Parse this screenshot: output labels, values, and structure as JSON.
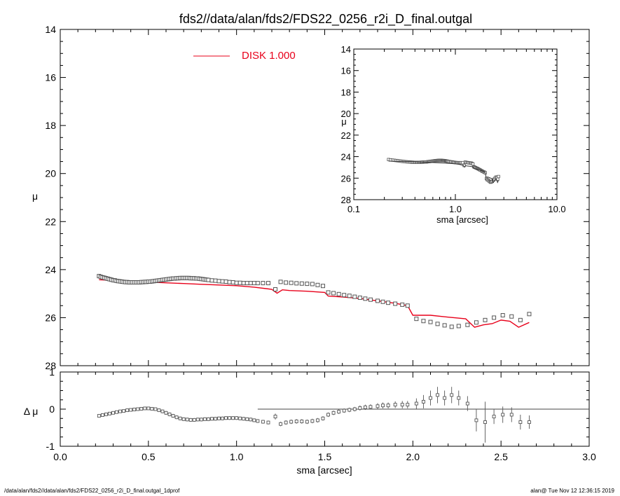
{
  "page": {
    "title": "fds2//data/alan/fds2/FDS22_0256_r2i_D_final.outgal",
    "footer_left": "/data/alan/fds2//data/alan/fds2/FDS22_0256_r2i_D_final.outgal_1dprof",
    "footer_right": "alan@  Tue Nov 12 12:36:15 2019"
  },
  "colors": {
    "model": "#e8001a",
    "data": "#555555",
    "axes": "#000000"
  },
  "chart_data": [
    {
      "id": "main",
      "type": "scatter",
      "ylabel": "μ",
      "xlabel": "",
      "xlim": [
        0,
        3
      ],
      "ylim": [
        28,
        14
      ],
      "y_inverted": true,
      "xticks": [],
      "yticks": [
        "14",
        "16",
        "18",
        "20",
        "22",
        "24",
        "26",
        "28"
      ],
      "legend": {
        "label": "DISK  1.000",
        "color": "#e8001a",
        "placement": "top-center"
      },
      "series": [
        {
          "name": "data",
          "marker": "square",
          "x": [
            0.22,
            0.23,
            0.24,
            0.25,
            0.26,
            0.27,
            0.28,
            0.29,
            0.3,
            0.31,
            0.32,
            0.33,
            0.34,
            0.35,
            0.36,
            0.37,
            0.38,
            0.39,
            0.4,
            0.41,
            0.42,
            0.43,
            0.44,
            0.45,
            0.46,
            0.47,
            0.48,
            0.49,
            0.5,
            0.51,
            0.52,
            0.53,
            0.54,
            0.55,
            0.56,
            0.57,
            0.58,
            0.59,
            0.6,
            0.61,
            0.62,
            0.63,
            0.64,
            0.65,
            0.66,
            0.67,
            0.68,
            0.69,
            0.7,
            0.71,
            0.72,
            0.73,
            0.74,
            0.75,
            0.76,
            0.77,
            0.78,
            0.79,
            0.8,
            0.81,
            0.82,
            0.83,
            0.84,
            0.86,
            0.88,
            0.9,
            0.92,
            0.94,
            0.96,
            0.98,
            1.0,
            1.02,
            1.04,
            1.06,
            1.08,
            1.1,
            1.12,
            1.15,
            1.18,
            1.22,
            1.25,
            1.28,
            1.31,
            1.34,
            1.37,
            1.4,
            1.43,
            1.46,
            1.49,
            1.52,
            1.55,
            1.58,
            1.61,
            1.64,
            1.67,
            1.7,
            1.73,
            1.76,
            1.8,
            1.83,
            1.86,
            1.9,
            1.94,
            1.97,
            2.02,
            2.06,
            2.1,
            2.14,
            2.18,
            2.22,
            2.26,
            2.31,
            2.36,
            2.41,
            2.46,
            2.51,
            2.56,
            2.61,
            2.66
          ],
          "y": [
            24.27,
            24.3,
            24.32,
            24.34,
            24.36,
            24.38,
            24.4,
            24.42,
            24.44,
            24.45,
            24.47,
            24.48,
            24.49,
            24.5,
            24.51,
            24.52,
            24.52,
            24.53,
            24.53,
            24.53,
            24.53,
            24.53,
            24.53,
            24.53,
            24.52,
            24.52,
            24.51,
            24.51,
            24.5,
            24.5,
            24.49,
            24.48,
            24.47,
            24.46,
            24.45,
            24.44,
            24.43,
            24.42,
            24.41,
            24.4,
            24.39,
            24.38,
            24.37,
            24.37,
            24.36,
            24.36,
            24.35,
            24.35,
            24.35,
            24.35,
            24.35,
            24.35,
            24.36,
            24.36,
            24.36,
            24.37,
            24.37,
            24.38,
            24.39,
            24.4,
            24.41,
            24.42,
            24.43,
            24.45,
            24.46,
            24.48,
            24.49,
            24.5,
            24.52,
            24.53,
            24.55,
            24.55,
            24.56,
            24.56,
            24.56,
            24.56,
            24.56,
            24.56,
            24.56,
            24.82,
            24.51,
            24.54,
            24.55,
            24.57,
            24.58,
            24.59,
            24.6,
            24.64,
            24.68,
            24.95,
            24.98,
            25.02,
            25.06,
            25.09,
            25.13,
            25.17,
            25.21,
            25.25,
            25.3,
            25.34,
            25.38,
            25.42,
            25.46,
            25.5,
            26.05,
            26.14,
            26.18,
            26.26,
            26.32,
            26.38,
            26.35,
            26.3,
            26.2,
            26.1,
            26.0,
            25.9,
            25.95,
            26.1,
            25.85
          ]
        },
        {
          "name": "model",
          "marker": "line",
          "x": [
            0.22,
            0.3,
            0.4,
            0.5,
            0.6,
            0.7,
            0.8,
            0.9,
            1.0,
            1.1,
            1.2,
            1.23,
            1.26,
            1.3,
            1.4,
            1.5,
            1.52,
            1.6,
            1.7,
            1.8,
            1.9,
            1.97,
            2.0,
            2.1,
            2.2,
            2.3,
            2.35,
            2.4,
            2.45,
            2.5,
            2.55,
            2.6,
            2.66
          ],
          "y": [
            24.42,
            24.45,
            24.48,
            24.52,
            24.55,
            24.58,
            24.61,
            24.64,
            24.67,
            24.73,
            24.82,
            24.98,
            24.84,
            24.87,
            24.9,
            24.95,
            25.1,
            25.14,
            25.2,
            25.3,
            25.4,
            25.5,
            25.9,
            25.9,
            25.98,
            26.05,
            26.4,
            26.3,
            26.25,
            26.1,
            26.15,
            26.4,
            26.2
          ]
        }
      ]
    },
    {
      "id": "inset",
      "type": "scatter",
      "ylabel": "μ",
      "xlabel": "sma [arcsec]",
      "x_scale": "log",
      "xlim": [
        0.1,
        10
      ],
      "ylim": [
        28,
        14
      ],
      "y_inverted": true,
      "xticks": [
        "0.1",
        "1.0",
        "10.0"
      ],
      "yticks": [
        "14",
        "16",
        "18",
        "20",
        "22",
        "24",
        "26",
        "28"
      ],
      "series": [
        {
          "name": "data",
          "marker": "square"
        },
        {
          "name": "model",
          "marker": "line"
        }
      ]
    },
    {
      "id": "residual",
      "type": "scatter",
      "ylabel": "Δ μ",
      "xlabel": "sma [arcsec]",
      "xlim": [
        0,
        3
      ],
      "ylim": [
        -1,
        1
      ],
      "reference_line": {
        "y": 0,
        "x_from": 1.12,
        "x_to": 3.0
      },
      "xticks": [
        "0.0",
        "0.5",
        "1.0",
        "1.5",
        "2.0",
        "2.5",
        "3.0"
      ],
      "yticks": [
        "1",
        "0",
        "-1"
      ],
      "series": [
        {
          "name": "residual",
          "marker": "square-errorbar",
          "x": [
            0.22,
            0.24,
            0.26,
            0.28,
            0.3,
            0.32,
            0.34,
            0.36,
            0.38,
            0.4,
            0.42,
            0.44,
            0.46,
            0.48,
            0.5,
            0.52,
            0.54,
            0.56,
            0.58,
            0.6,
            0.62,
            0.64,
            0.66,
            0.68,
            0.7,
            0.72,
            0.74,
            0.76,
            0.78,
            0.8,
            0.82,
            0.84,
            0.86,
            0.88,
            0.9,
            0.92,
            0.94,
            0.96,
            0.98,
            1.0,
            1.02,
            1.04,
            1.06,
            1.08,
            1.1,
            1.12,
            1.15,
            1.18,
            1.22,
            1.25,
            1.28,
            1.31,
            1.34,
            1.37,
            1.4,
            1.43,
            1.46,
            1.49,
            1.52,
            1.55,
            1.58,
            1.61,
            1.64,
            1.67,
            1.7,
            1.73,
            1.76,
            1.8,
            1.83,
            1.86,
            1.9,
            1.94,
            1.97,
            2.02,
            2.06,
            2.1,
            2.14,
            2.18,
            2.22,
            2.26,
            2.31,
            2.36,
            2.41,
            2.46,
            2.51,
            2.56,
            2.61,
            2.66
          ],
          "y": [
            -0.18,
            -0.16,
            -0.14,
            -0.12,
            -0.1,
            -0.08,
            -0.06,
            -0.05,
            -0.03,
            -0.02,
            -0.01,
            0.0,
            0.01,
            0.02,
            0.02,
            0.01,
            0.0,
            -0.03,
            -0.06,
            -0.1,
            -0.14,
            -0.18,
            -0.22,
            -0.25,
            -0.27,
            -0.28,
            -0.29,
            -0.29,
            -0.28,
            -0.28,
            -0.27,
            -0.27,
            -0.26,
            -0.26,
            -0.25,
            -0.25,
            -0.24,
            -0.24,
            -0.24,
            -0.24,
            -0.25,
            -0.26,
            -0.27,
            -0.28,
            -0.3,
            -0.32,
            -0.34,
            -0.36,
            -0.2,
            -0.4,
            -0.36,
            -0.34,
            -0.33,
            -0.33,
            -0.34,
            -0.32,
            -0.3,
            -0.25,
            -0.15,
            -0.1,
            -0.07,
            -0.04,
            -0.02,
            0.0,
            0.03,
            0.05,
            0.06,
            0.08,
            0.1,
            0.1,
            0.12,
            0.12,
            0.12,
            0.15,
            0.2,
            0.3,
            0.38,
            0.3,
            0.38,
            0.3,
            0.15,
            -0.3,
            -0.35,
            -0.2,
            -0.15,
            -0.15,
            -0.35,
            -0.35
          ],
          "err": [
            0.03,
            0.03,
            0.03,
            0.03,
            0.03,
            0.03,
            0.03,
            0.03,
            0.03,
            0.03,
            0.03,
            0.03,
            0.03,
            0.03,
            0.04,
            0.04,
            0.04,
            0.04,
            0.05,
            0.05,
            0.05,
            0.05,
            0.05,
            0.05,
            0.05,
            0.05,
            0.05,
            0.05,
            0.05,
            0.05,
            0.05,
            0.05,
            0.05,
            0.05,
            0.05,
            0.05,
            0.05,
            0.05,
            0.05,
            0.05,
            0.05,
            0.05,
            0.05,
            0.05,
            0.05,
            0.05,
            0.05,
            0.05,
            0.08,
            0.06,
            0.06,
            0.06,
            0.06,
            0.06,
            0.06,
            0.06,
            0.06,
            0.06,
            0.06,
            0.06,
            0.06,
            0.06,
            0.06,
            0.06,
            0.07,
            0.07,
            0.07,
            0.08,
            0.08,
            0.08,
            0.09,
            0.1,
            0.1,
            0.14,
            0.18,
            0.2,
            0.22,
            0.2,
            0.22,
            0.2,
            0.2,
            0.3,
            0.55,
            0.2,
            0.22,
            0.2,
            0.2,
            0.18
          ]
        }
      ]
    }
  ]
}
